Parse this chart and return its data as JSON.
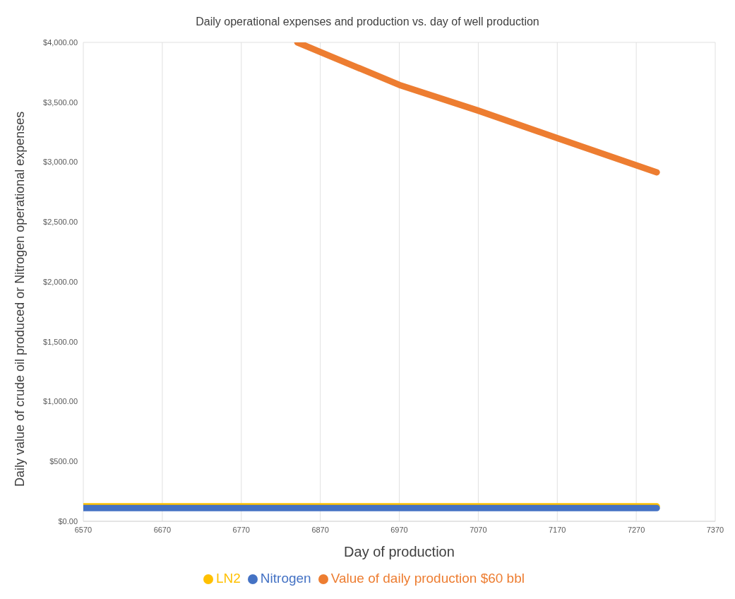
{
  "chart_data": {
    "type": "line",
    "title": "Daily operational expenses and production  vs. day of well production",
    "xlabel": "Day of production",
    "ylabel": "Daily value of crude oil produced  or Nitrogen operational expenses",
    "xlim": [
      6570,
      7370
    ],
    "xticks": [
      6570,
      6670,
      6770,
      6870,
      6970,
      7070,
      7170,
      7270,
      7370
    ],
    "ylim": [
      0,
      4000
    ],
    "yticks": [
      {
        "value": 0,
        "label": "$0.00"
      },
      {
        "value": 500,
        "label": "$500.00"
      },
      {
        "value": 1000,
        "label": "$1,000.00"
      },
      {
        "value": 1500,
        "label": "$1,500.00"
      },
      {
        "value": 2000,
        "label": "$2,000.00"
      },
      {
        "value": 2500,
        "label": "$2,500.00"
      },
      {
        "value": 3000,
        "label": "$3,000.00"
      },
      {
        "value": 3500,
        "label": "$3,500.00"
      },
      {
        "value": 4000,
        "label": "$4,000.00"
      }
    ],
    "grid": true,
    "legend": "bottom",
    "marker": "none",
    "series": [
      {
        "name": "Value of daily production $60 bbl",
        "color": "#ed7d31",
        "x": [
          6841,
          6870,
          6970,
          7070,
          7170,
          7296
        ],
        "values": [
          4000,
          3920,
          3645,
          3430,
          3200,
          2915
        ]
      },
      {
        "name": "LN2",
        "color": "#ffc000",
        "x": [
          6570,
          7296
        ],
        "values": [
          125,
          125
        ]
      },
      {
        "name": "Nitrogen",
        "color": "#4472c4",
        "x": [
          6570,
          7296
        ],
        "values": [
          110,
          110
        ]
      }
    ]
  }
}
